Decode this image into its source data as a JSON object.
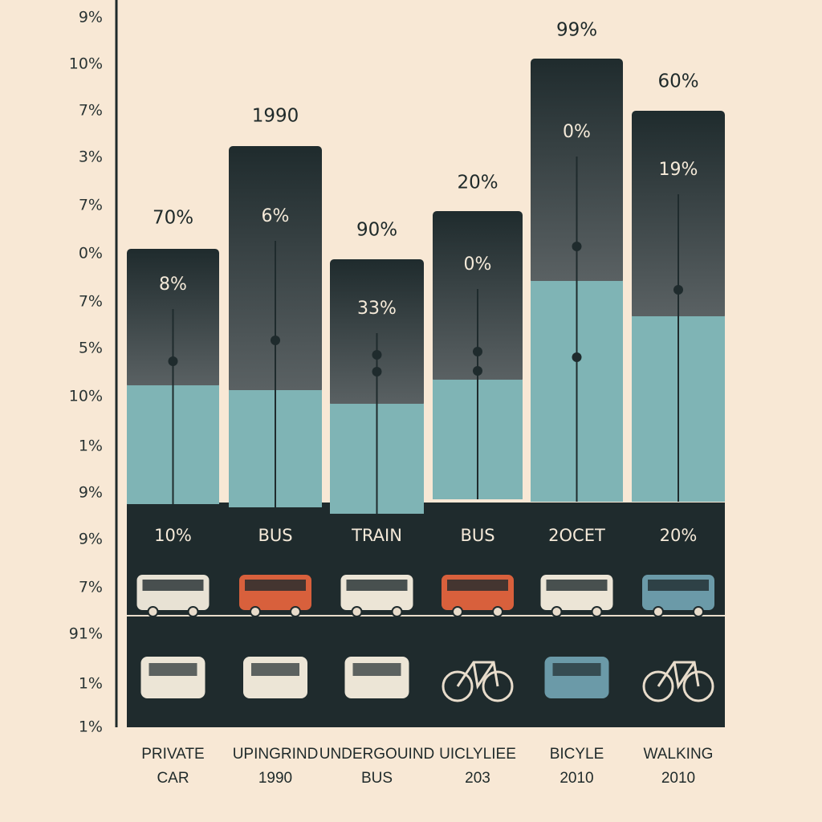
{
  "axis_labels": [
    "9%",
    "10%",
    "7%",
    "3%",
    "7%",
    "0%",
    "7%",
    "5%",
    "10%",
    "1%",
    "9%",
    "9%",
    "7%",
    "91%",
    "1%",
    "1%"
  ],
  "columns": [
    {
      "top": "70%",
      "inner": "8%",
      "band": "10%",
      "caption": [
        "PRIVATE",
        "CAR"
      ]
    },
    {
      "top": "1990",
      "inner": "6%",
      "band": "BUS",
      "caption": [
        "UPINGRIND",
        "1990"
      ]
    },
    {
      "top": "90%",
      "inner": "33%",
      "band": "TRAIN",
      "caption": [
        "UNDERGOUIND",
        "BUS"
      ]
    },
    {
      "top": "20%",
      "inner": "0%",
      "band": "BUS",
      "caption": [
        "UICLYLIEE",
        "203"
      ]
    },
    {
      "top": "99%",
      "inner": "0%",
      "band": "2OCET",
      "caption": [
        "BICYLE",
        "2010"
      ]
    },
    {
      "top": "60%",
      "inner": "19%",
      "band": "20%",
      "caption": [
        "WALKING",
        "2010"
      ]
    }
  ]
}
